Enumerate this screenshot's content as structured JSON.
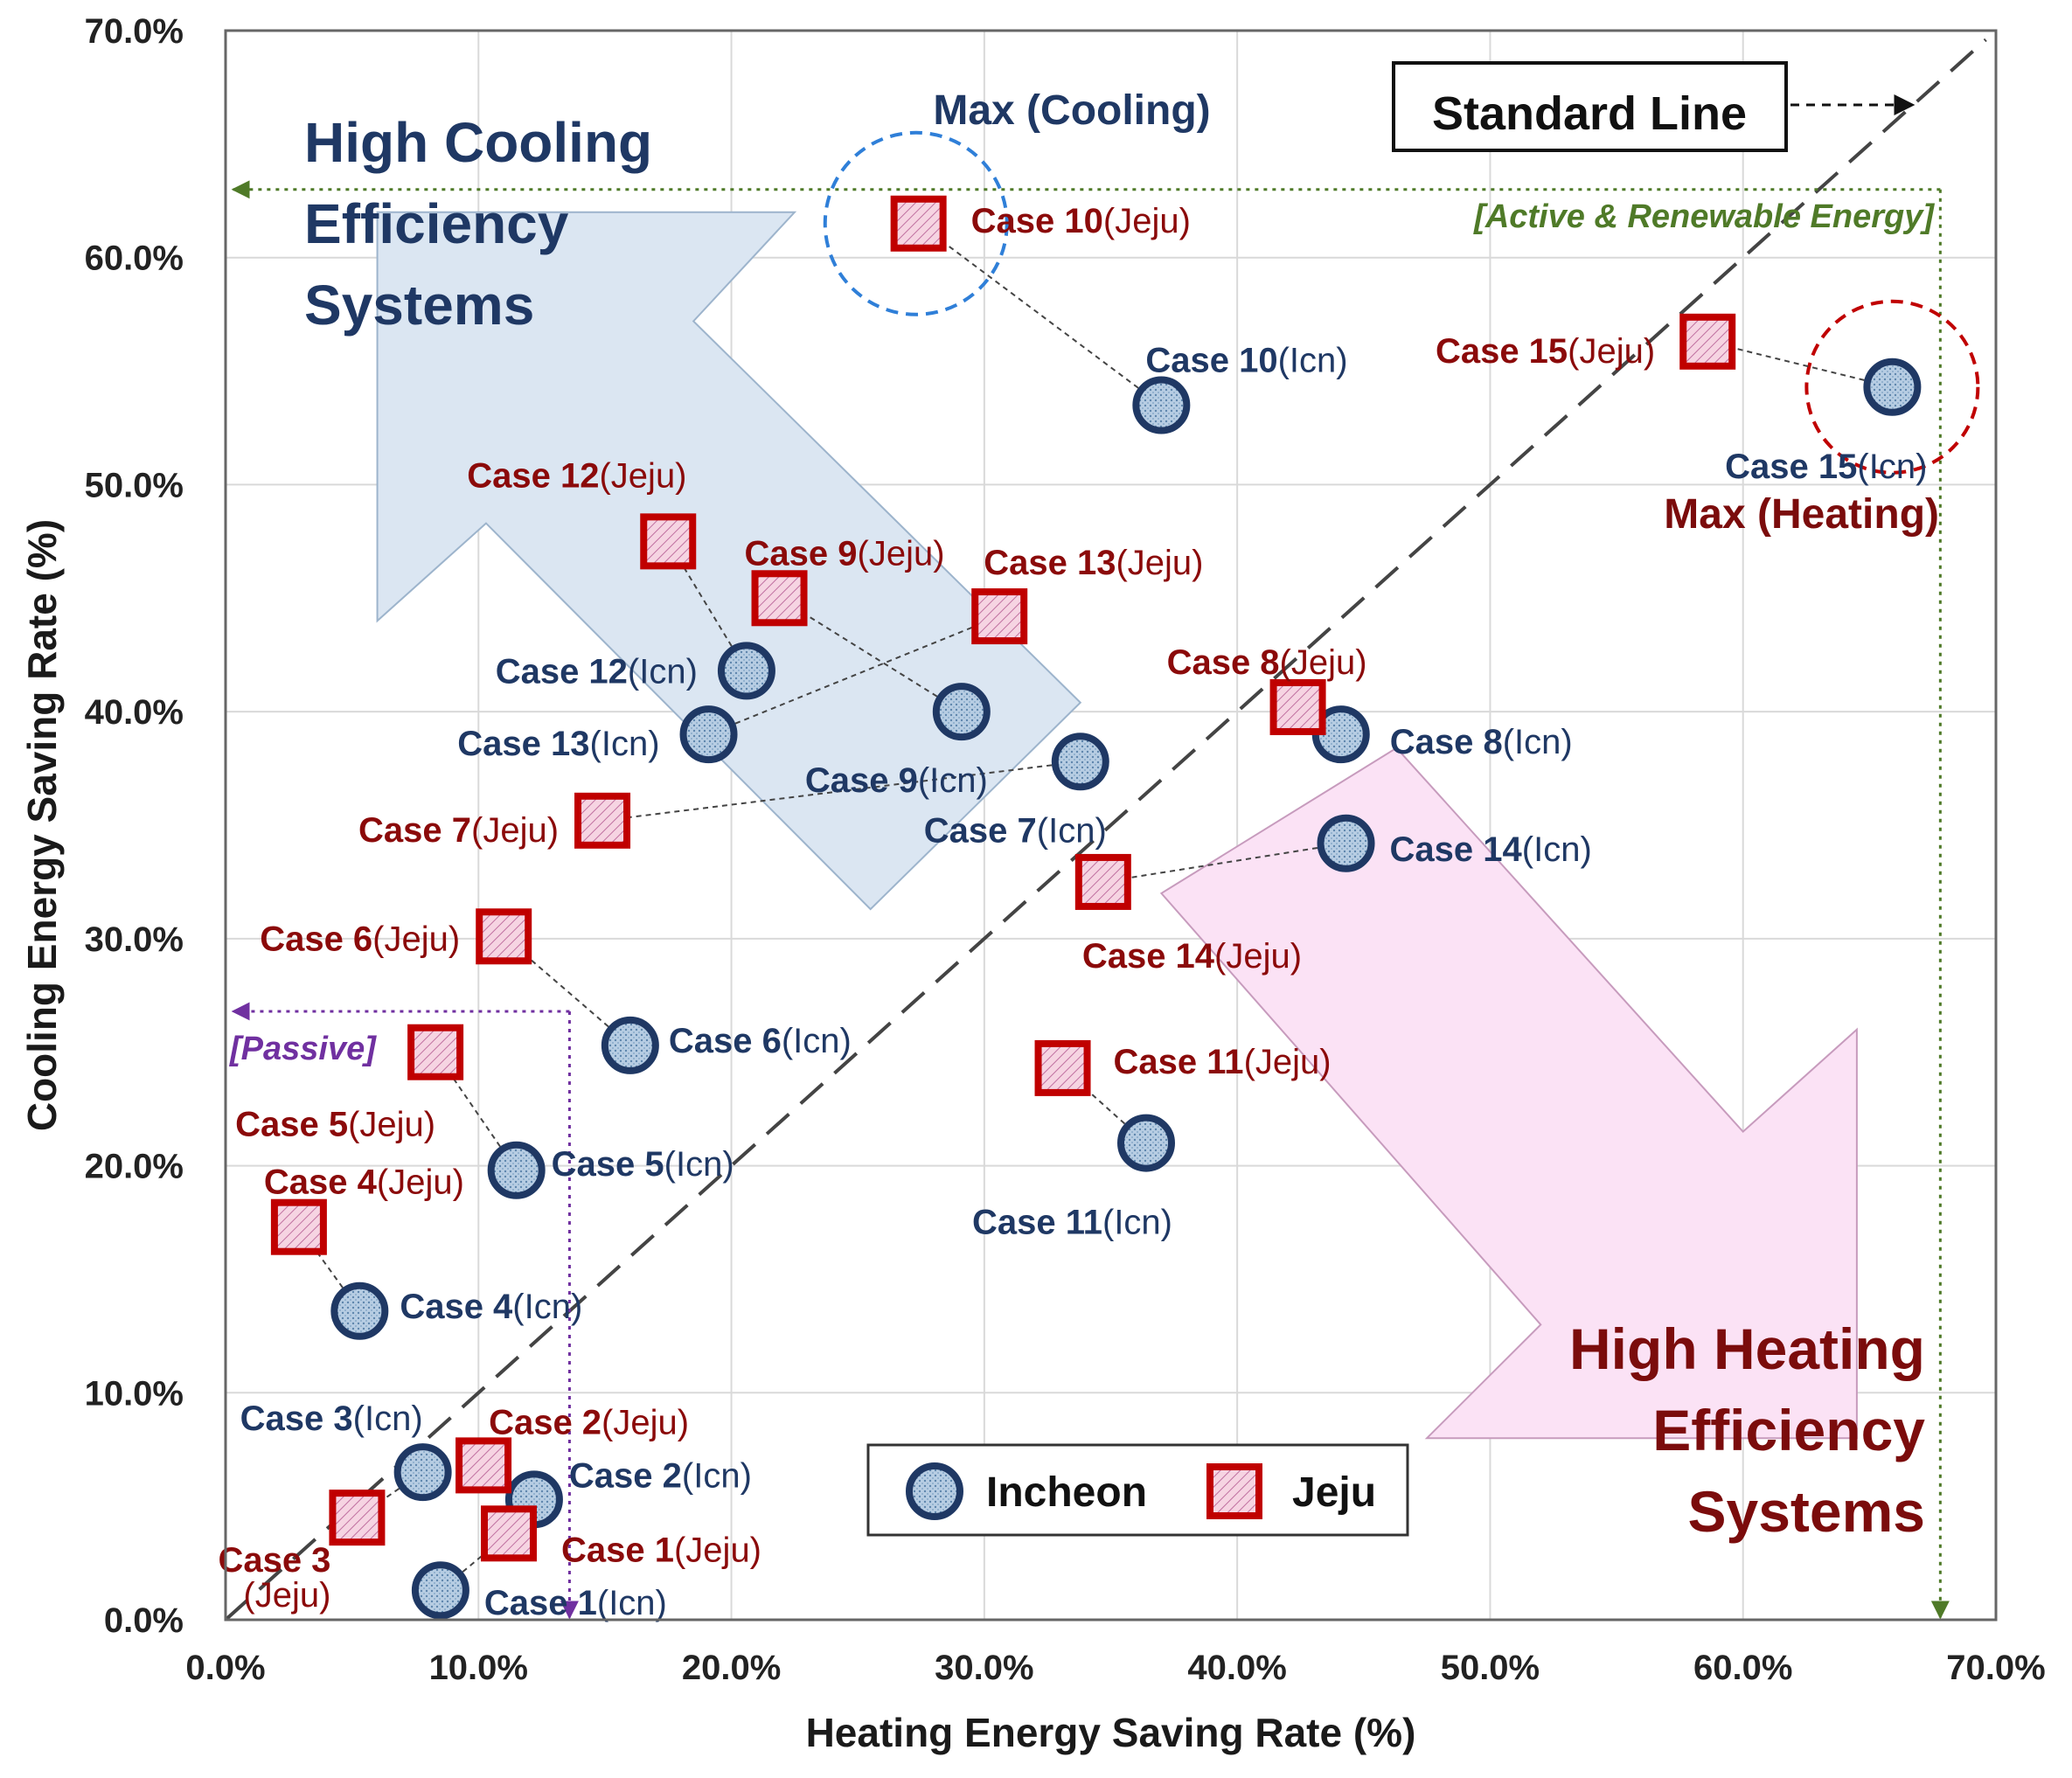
{
  "chart_data": {
    "type": "scatter",
    "xlabel": "Heating Energy Saving Rate (%)",
    "ylabel": "Cooling Energy Saving Rate (%)",
    "xlim": [
      0,
      70
    ],
    "ylim": [
      0,
      70
    ],
    "xticks": [
      "0.0%",
      "10.0%",
      "20.0%",
      "30.0%",
      "40.0%",
      "50.0%",
      "60.0%",
      "70.0%"
    ],
    "yticks": [
      "0.0%",
      "10.0%",
      "20.0%",
      "30.0%",
      "40.0%",
      "50.0%",
      "60.0%",
      "70.0%"
    ],
    "grid": true,
    "legend_position": "bottom-center",
    "series": [
      {
        "name": "Incheon",
        "color": "#1f3864",
        "fill": "#a9c4dd",
        "marker": "circle",
        "points": [
          {
            "case": "Case 1",
            "region": "(Icn)",
            "x": 8.5,
            "y": 1.3
          },
          {
            "case": "Case 2",
            "region": "(Icn)",
            "x": 12.2,
            "y": 5.3
          },
          {
            "case": "Case 3",
            "region": "(Icn)",
            "x": 7.8,
            "y": 6.5
          },
          {
            "case": "Case 4",
            "region": "(Icn)",
            "x": 5.3,
            "y": 13.6
          },
          {
            "case": "Case 5",
            "region": "(Icn)",
            "x": 11.5,
            "y": 19.8
          },
          {
            "case": "Case 6",
            "region": "(Icn)",
            "x": 16.0,
            "y": 25.3
          },
          {
            "case": "Case 7",
            "region": "(Icn)",
            "x": 33.8,
            "y": 37.8
          },
          {
            "case": "Case 8",
            "region": "(Icn)",
            "x": 44.1,
            "y": 39.0
          },
          {
            "case": "Case 9",
            "region": "(Icn)",
            "x": 29.1,
            "y": 40.0
          },
          {
            "case": "Case 10",
            "region": "(Icn)",
            "x": 37.0,
            "y": 53.5
          },
          {
            "case": "Case 11",
            "region": "(Icn)",
            "x": 36.4,
            "y": 21.0
          },
          {
            "case": "Case 12",
            "region": "(Icn)",
            "x": 20.6,
            "y": 41.8
          },
          {
            "case": "Case 13",
            "region": "(Icn)",
            "x": 19.1,
            "y": 39.0
          },
          {
            "case": "Case 14",
            "region": "(Icn)",
            "x": 44.3,
            "y": 34.2
          },
          {
            "case": "Case 15",
            "region": "(Icn)",
            "x": 65.9,
            "y": 54.3
          }
        ]
      },
      {
        "name": "Jeju",
        "color": "#c00000",
        "fill": "#f2c9d8",
        "marker": "square",
        "points": [
          {
            "case": "Case 1",
            "region": "(Jeju)",
            "x": 11.2,
            "y": 3.8
          },
          {
            "case": "Case 2",
            "region": "(Jeju)",
            "x": 10.2,
            "y": 6.8
          },
          {
            "case": "Case 3",
            "region": "(Jeju)",
            "x": 5.2,
            "y": 4.5
          },
          {
            "case": "Case 4",
            "region": "(Jeju)",
            "x": 2.9,
            "y": 17.3
          },
          {
            "case": "Case 5",
            "region": "(Jeju)",
            "x": 8.3,
            "y": 25.0
          },
          {
            "case": "Case 6",
            "region": "(Jeju)",
            "x": 11.0,
            "y": 30.1
          },
          {
            "case": "Case 7",
            "region": "(Jeju)",
            "x": 14.9,
            "y": 35.2
          },
          {
            "case": "Case 8",
            "region": "(Jeju)",
            "x": 42.4,
            "y": 40.2
          },
          {
            "case": "Case 9",
            "region": "(Jeju)",
            "x": 21.9,
            "y": 45.0
          },
          {
            "case": "Case 10",
            "region": "(Jeju)",
            "x": 27.4,
            "y": 61.5
          },
          {
            "case": "Case 11",
            "region": "(Jeju)",
            "x": 33.1,
            "y": 24.3
          },
          {
            "case": "Case 12",
            "region": "(Jeju)",
            "x": 17.5,
            "y": 47.5
          },
          {
            "case": "Case 13",
            "region": "(Jeju)",
            "x": 30.6,
            "y": 44.2
          },
          {
            "case": "Case 14",
            "region": "(Jeju)",
            "x": 34.7,
            "y": 32.5
          },
          {
            "case": "Case 15",
            "region": "(Jeju)",
            "x": 58.6,
            "y": 56.3
          }
        ]
      }
    ],
    "annotations": {
      "standard_line": "Standard Line",
      "active_renewable": "[Active & Renewable Energy]",
      "passive": "[Passive]",
      "max_cooling": "Max (Cooling)",
      "max_heating": "Max (Heating)",
      "high_cooling": [
        "High Cooling",
        "Efficiency",
        "Systems"
      ],
      "high_heating": [
        "High Heating",
        "Efficiency",
        "Systems"
      ]
    }
  }
}
